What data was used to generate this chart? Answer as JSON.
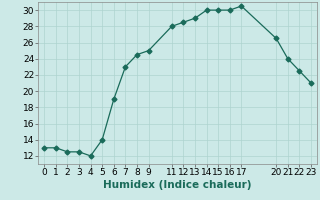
{
  "x": [
    0,
    1,
    2,
    3,
    4,
    5,
    6,
    7,
    8,
    9,
    11,
    12,
    13,
    14,
    15,
    16,
    17,
    20,
    21,
    22,
    23
  ],
  "y": [
    13,
    13,
    12.5,
    12.5,
    12,
    14,
    19,
    23,
    24.5,
    25,
    28,
    28.5,
    29,
    30,
    30,
    30,
    30.5,
    26.5,
    24,
    22.5,
    21
  ],
  "line_color": "#1a6b5a",
  "marker": "D",
  "marker_size": 2.5,
  "bg_color": "#cce9e7",
  "grid_color": "#aed4d0",
  "xlabel": "Humidex (Indice chaleur)",
  "xlim": [
    -0.5,
    23.5
  ],
  "ylim": [
    11,
    31
  ],
  "xticks": [
    0,
    1,
    2,
    3,
    4,
    5,
    6,
    7,
    8,
    9,
    11,
    12,
    13,
    14,
    15,
    16,
    17,
    20,
    21,
    22,
    23
  ],
  "yticks": [
    12,
    14,
    16,
    18,
    20,
    22,
    24,
    26,
    28,
    30
  ],
  "tick_label_fontsize": 6.5,
  "xlabel_fontsize": 7.5
}
